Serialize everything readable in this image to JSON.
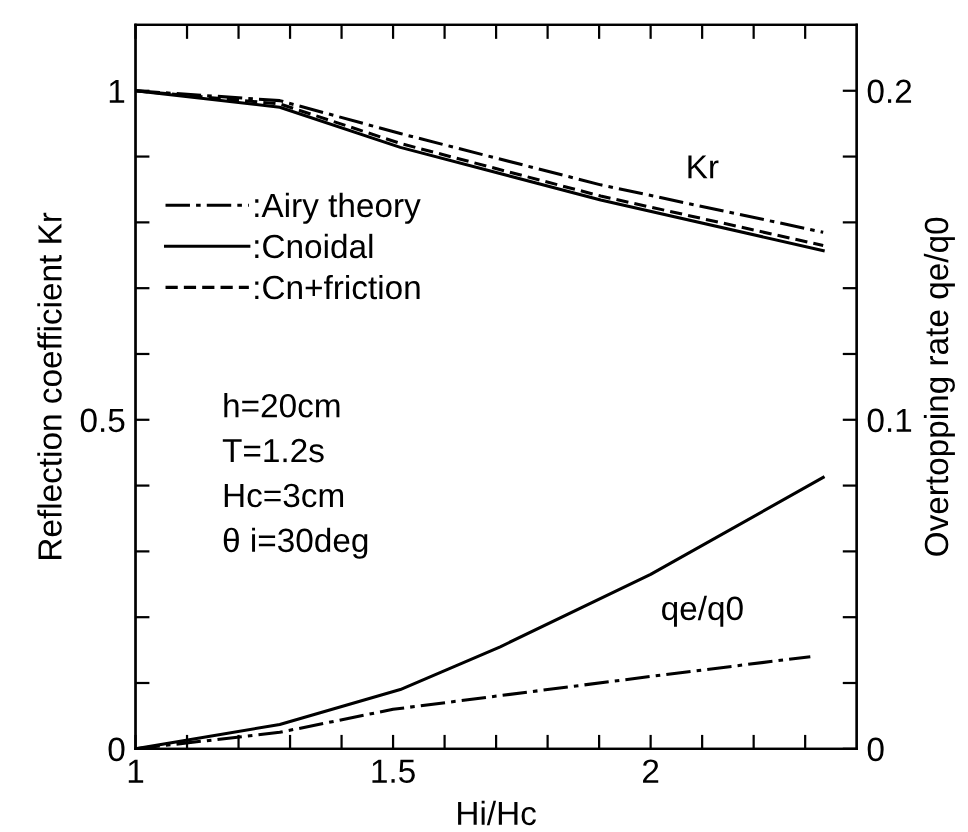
{
  "chart_data": {
    "type": "line",
    "xlabel": "Hi/Hc",
    "ylabel": "Reflection coefficient Kr",
    "y2label": "Overtopping rate qe/q0",
    "xlim": [
      1,
      2.4
    ],
    "xticks": [
      1,
      {
        "value": 1.1,
        "label": null
      },
      {
        "value": 1.2,
        "label": null
      },
      {
        "value": 1.3,
        "label": null
      },
      {
        "value": 1.4,
        "label": null
      },
      1.5,
      {
        "value": 1.6,
        "label": null
      },
      {
        "value": 1.7,
        "label": null
      },
      {
        "value": 1.8,
        "label": null
      },
      {
        "value": 1.9,
        "label": null
      },
      2,
      {
        "value": 2.1,
        "label": null
      },
      {
        "value": 2.2,
        "label": null
      },
      {
        "value": 2.3,
        "label": null
      }
    ],
    "ylim": [
      0,
      1.1
    ],
    "yticks": [
      0,
      {
        "value": 0.1,
        "label": null
      },
      {
        "value": 0.2,
        "label": null
      },
      {
        "value": 0.3,
        "label": null
      },
      {
        "value": 0.4,
        "label": null
      },
      0.5,
      {
        "value": 0.6,
        "label": null
      },
      {
        "value": 0.7,
        "label": null
      },
      {
        "value": 0.8,
        "label": null
      },
      {
        "value": 0.9,
        "label": null
      },
      1
    ],
    "y2lim": [
      0,
      0.22
    ],
    "y2ticks": [
      0,
      {
        "value": 0.02,
        "label": null
      },
      {
        "value": 0.04,
        "label": null
      },
      {
        "value": 0.06,
        "label": null
      },
      {
        "value": 0.08,
        "label": null
      },
      0.1,
      {
        "value": 0.12,
        "label": null
      },
      {
        "value": 0.14,
        "label": null
      },
      {
        "value": 0.16,
        "label": null
      },
      {
        "value": 0.18,
        "label": null
      },
      0.2
    ],
    "x": [
      1,
      1.28,
      1.514,
      1.708,
      1.903,
      2,
      2.335
    ],
    "series": [
      {
        "name": ":Airy theory",
        "color": "#000000",
        "line_style": "dashdot",
        "values": [
          1.0,
          0.985,
          0.935,
          null,
          0.857,
          null,
          0.785
        ]
      },
      {
        "name": ":Cnoidal",
        "color": "#000000",
        "line_style": "solid",
        "values": [
          1.0,
          0.975,
          0.914,
          null,
          0.834,
          null,
          0.757
        ]
      },
      {
        "name": ":Cn+friction",
        "color": "#000000",
        "line_style": "dashed",
        "values": [
          1.0,
          0.98,
          0.92,
          null,
          0.84,
          null,
          0.765
        ]
      },
      {
        "axis": "y2",
        "color": "#000000",
        "line_style": "dashdot",
        "x": [
          1,
          1.28,
          1.5,
          2,
          2.31
        ],
        "values": [
          0,
          0.005,
          0.012,
          0.022,
          0.028
        ]
      },
      {
        "axis": "y2",
        "color": "#000000",
        "line_style": "solid",
        "values": [
          0,
          0.0074,
          0.018,
          0.031,
          null,
          0.053,
          0.0825
        ]
      }
    ],
    "legend": "left",
    "annotations": [
      "Kr",
      "qe/q0",
      "h=20cm",
      "T=1.2s",
      "Hc=3cm",
      "θ i=30deg"
    ]
  }
}
